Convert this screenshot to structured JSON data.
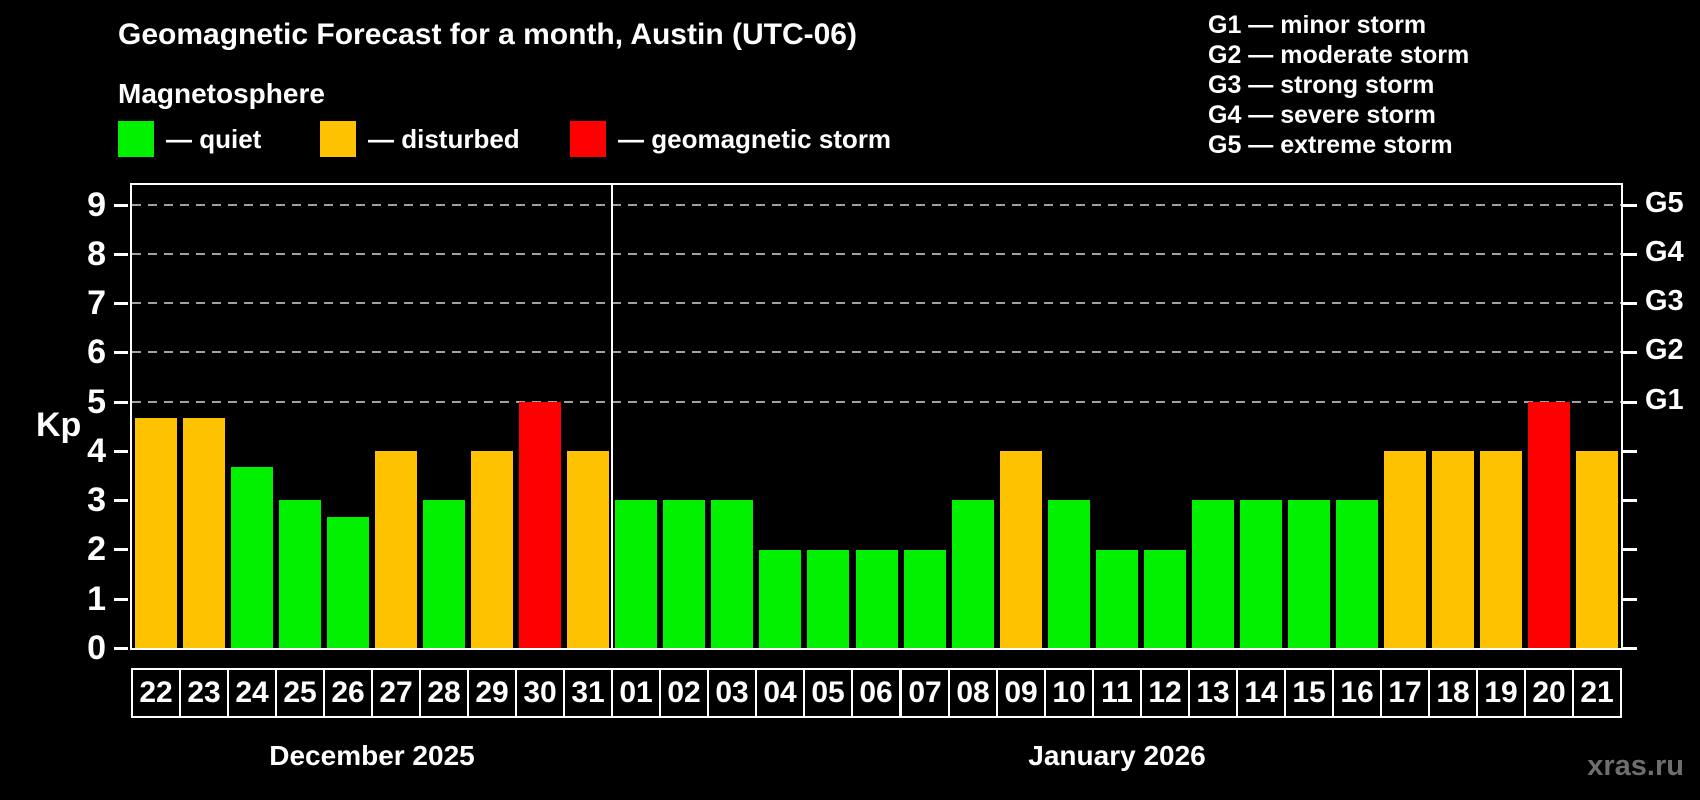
{
  "header": {
    "title": "Geomagnetic Forecast for a month, Austin (UTC-06)",
    "subtitle": "Magnetosphere"
  },
  "legend": {
    "items": [
      {
        "name": "quiet",
        "label": "— quiet",
        "color": "#00f000"
      },
      {
        "name": "disturbed",
        "label": "— disturbed",
        "color": "#ffc200"
      },
      {
        "name": "storm",
        "label": "— geomagnetic storm",
        "color": "#fe0000"
      }
    ]
  },
  "g_legend": {
    "items": [
      {
        "code": "G1",
        "label": "G1 — minor storm"
      },
      {
        "code": "G2",
        "label": "G2 — moderate storm"
      },
      {
        "code": "G3",
        "label": "G3 — strong storm"
      },
      {
        "code": "G4",
        "label": "G4 — severe storm"
      },
      {
        "code": "G5",
        "label": "G5 — extreme storm"
      }
    ]
  },
  "axes": {
    "y_label": "Kp",
    "y_ticks": [
      0,
      1,
      2,
      3,
      4,
      5,
      6,
      7,
      8,
      9
    ],
    "right_labels": [
      {
        "text": "G1",
        "kp": 5
      },
      {
        "text": "G2",
        "kp": 6
      },
      {
        "text": "G3",
        "kp": 7
      },
      {
        "text": "G4",
        "kp": 8
      },
      {
        "text": "G5",
        "kp": 9
      }
    ]
  },
  "chart_data": {
    "type": "bar",
    "title": "Geomagnetic Forecast for a month, Austin (UTC-06)",
    "ylabel": "Kp",
    "ylim": [
      0,
      9.4
    ],
    "grid": "dashed horizontal at G-storm levels",
    "gridlines_at_kp": [
      5,
      6,
      7,
      8,
      9
    ],
    "state_colors": {
      "quiet": "#00f000",
      "disturbed": "#ffc200",
      "storm": "#fe0000"
    },
    "months": [
      {
        "label": "December 2025",
        "days": [
          {
            "day": "22",
            "kp": 4.67,
            "state": "disturbed"
          },
          {
            "day": "23",
            "kp": 4.67,
            "state": "disturbed"
          },
          {
            "day": "24",
            "kp": 3.67,
            "state": "quiet"
          },
          {
            "day": "25",
            "kp": 3.0,
            "state": "quiet"
          },
          {
            "day": "26",
            "kp": 2.67,
            "state": "quiet"
          },
          {
            "day": "27",
            "kp": 4.0,
            "state": "disturbed"
          },
          {
            "day": "28",
            "kp": 3.0,
            "state": "quiet"
          },
          {
            "day": "29",
            "kp": 4.0,
            "state": "disturbed"
          },
          {
            "day": "30",
            "kp": 5.0,
            "state": "storm"
          },
          {
            "day": "31",
            "kp": 4.0,
            "state": "disturbed"
          }
        ]
      },
      {
        "label": "January 2026",
        "days": [
          {
            "day": "01",
            "kp": 3.0,
            "state": "quiet"
          },
          {
            "day": "02",
            "kp": 3.0,
            "state": "quiet"
          },
          {
            "day": "03",
            "kp": 3.0,
            "state": "quiet"
          },
          {
            "day": "04",
            "kp": 2.0,
            "state": "quiet"
          },
          {
            "day": "05",
            "kp": 2.0,
            "state": "quiet"
          },
          {
            "day": "06",
            "kp": 2.0,
            "state": "quiet"
          },
          {
            "day": "07",
            "kp": 2.0,
            "state": "quiet"
          },
          {
            "day": "08",
            "kp": 3.0,
            "state": "quiet"
          },
          {
            "day": "09",
            "kp": 4.0,
            "state": "disturbed"
          },
          {
            "day": "10",
            "kp": 3.0,
            "state": "quiet"
          },
          {
            "day": "11",
            "kp": 2.0,
            "state": "quiet"
          },
          {
            "day": "12",
            "kp": 2.0,
            "state": "quiet"
          },
          {
            "day": "13",
            "kp": 3.0,
            "state": "quiet"
          },
          {
            "day": "14",
            "kp": 3.0,
            "state": "quiet"
          },
          {
            "day": "15",
            "kp": 3.0,
            "state": "quiet"
          },
          {
            "day": "16",
            "kp": 3.0,
            "state": "quiet"
          },
          {
            "day": "17",
            "kp": 4.0,
            "state": "disturbed"
          },
          {
            "day": "18",
            "kp": 4.0,
            "state": "disturbed"
          },
          {
            "day": "19",
            "kp": 4.0,
            "state": "disturbed"
          },
          {
            "day": "20",
            "kp": 5.0,
            "state": "storm"
          },
          {
            "day": "21",
            "kp": 4.0,
            "state": "disturbed"
          }
        ]
      }
    ]
  },
  "watermark": "xras.ru"
}
